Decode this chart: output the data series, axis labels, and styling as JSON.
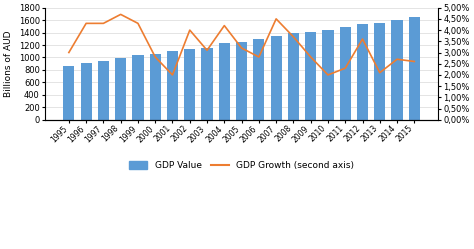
{
  "years": [
    1995,
    1996,
    1997,
    1998,
    1999,
    2000,
    2001,
    2002,
    2003,
    2004,
    2005,
    2006,
    2007,
    2008,
    2009,
    2010,
    2011,
    2012,
    2013,
    2014,
    2015
  ],
  "gdp_values": [
    865,
    905,
    950,
    990,
    1035,
    1060,
    1100,
    1140,
    1160,
    1225,
    1255,
    1290,
    1345,
    1390,
    1405,
    1445,
    1485,
    1535,
    1560,
    1600,
    1650
  ],
  "gdp_growth": [
    0.03,
    0.043,
    0.043,
    0.047,
    0.043,
    0.028,
    0.02,
    0.04,
    0.031,
    0.042,
    0.032,
    0.028,
    0.045,
    0.037,
    0.028,
    0.02,
    0.023,
    0.036,
    0.021,
    0.027,
    0.026
  ],
  "bar_color": "#5B9BD5",
  "line_color": "#ED7D31",
  "ylabel_left": "Billions of AUD",
  "ylim_left": [
    0,
    1800
  ],
  "ylim_right": [
    0,
    0.05
  ],
  "yticks_left": [
    0,
    200,
    400,
    600,
    800,
    1000,
    1200,
    1400,
    1600,
    1800
  ],
  "yticks_right": [
    0.0,
    0.005,
    0.01,
    0.015,
    0.02,
    0.025,
    0.03,
    0.035,
    0.04,
    0.045,
    0.05
  ],
  "legend_labels": [
    "GDP Value",
    "GDP Growth (second axis)"
  ],
  "background_color": "#FFFFFF",
  "grid_color": "#D9D9D9"
}
